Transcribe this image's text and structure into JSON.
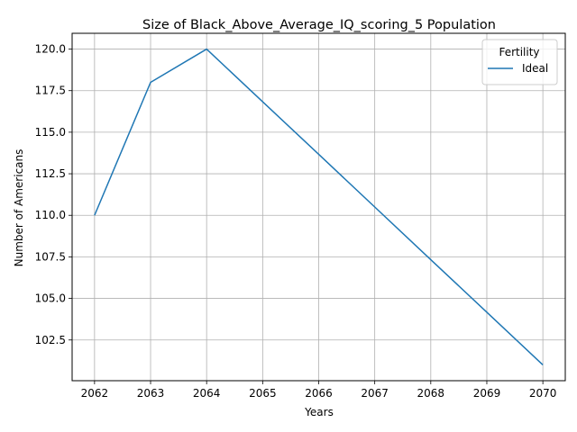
{
  "chart_data": {
    "type": "line",
    "title": "Size of Black_Above_Average_IQ_scoring_5 Population",
    "xlabel": "Years",
    "ylabel": "Number of Americans",
    "x": [
      2062,
      2063,
      2064,
      2065,
      2066,
      2067,
      2068,
      2069,
      2070
    ],
    "xticks": [
      "2062",
      "2063",
      "2064",
      "2065",
      "2066",
      "2067",
      "2068",
      "2069",
      "2070"
    ],
    "yticks": [
      "102.5",
      "105.0",
      "107.5",
      "110.0",
      "112.5",
      "115.0",
      "117.5",
      "120.0"
    ],
    "ytick_values": [
      102.5,
      105.0,
      107.5,
      110.0,
      112.5,
      115.0,
      117.5,
      120.0
    ],
    "xlim": [
      2061.6,
      2070.4
    ],
    "ylim": [
      100.05,
      120.95
    ],
    "grid": true,
    "legend": {
      "title": "Fertility",
      "placement": "top-right"
    },
    "series": [
      {
        "name": "Ideal",
        "color": "#1f77b4",
        "values": [
          110,
          118,
          120,
          116.83,
          113.67,
          110.5,
          107.33,
          104.17,
          101
        ]
      }
    ]
  }
}
